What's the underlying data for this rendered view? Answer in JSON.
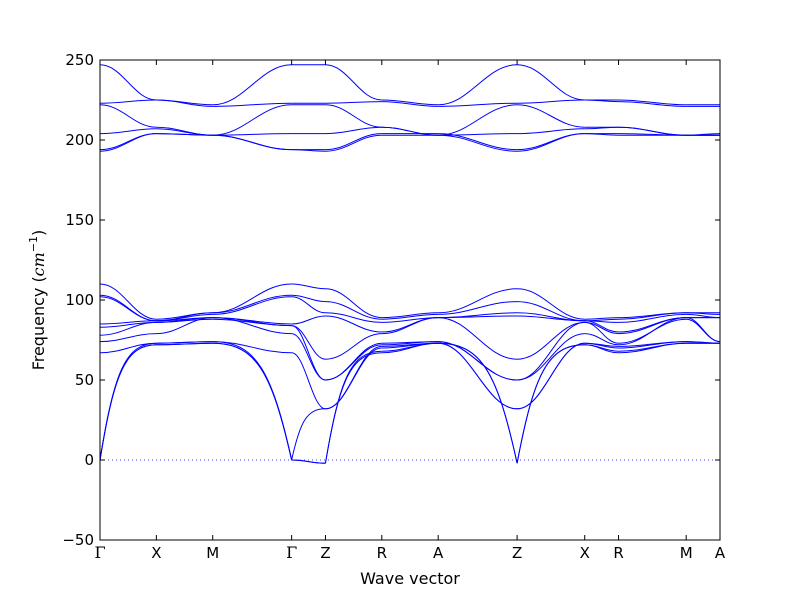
{
  "chart_data": {
    "type": "line",
    "xlabel": "Wave vector",
    "ylabel_text": "Frequency (",
    "ylabel_unit": "cm",
    "ylabel_exp": "−1",
    "ylabel_close": ")",
    "ylim": [
      -50,
      250
    ],
    "y_ticks": [
      -50,
      0,
      50,
      100,
      150,
      200,
      250
    ],
    "y_tick_labels": [
      "−50",
      "0",
      "50",
      "100",
      "150",
      "200",
      "250"
    ],
    "zero_line": {
      "value": 0,
      "style": "dotted",
      "color": "#0000ff"
    },
    "series_color": "#0000ff",
    "path": [
      {
        "label": "Γ",
        "k": 0.0
      },
      {
        "label": "X",
        "k": 0.5
      },
      {
        "label": "M",
        "k": 1.0
      },
      {
        "label": "Γ",
        "k": 1.7
      },
      {
        "label": "Z",
        "k": 2.0
      },
      {
        "label": "R",
        "k": 2.5
      },
      {
        "label": "A",
        "k": 3.0
      },
      {
        "label": "Z",
        "k": 3.7
      },
      {
        "label": "X",
        "k": 4.3
      },
      {
        "label": "R",
        "k": 4.6
      },
      {
        "label": "M",
        "k": 5.2
      },
      {
        "label": "A",
        "k": 5.5
      }
    ],
    "segments": [
      {
        "from": "Γ",
        "to": "X",
        "bands": [
          [
            0,
            72
          ],
          [
            0,
            72
          ],
          [
            0,
            73
          ],
          [
            67,
            73
          ],
          [
            74,
            79
          ],
          [
            78,
            86
          ],
          [
            83,
            86
          ],
          [
            85,
            87
          ],
          [
            102,
            87
          ],
          [
            103,
            87
          ],
          [
            110,
            88
          ],
          [
            193,
            204
          ],
          [
            194,
            204
          ],
          [
            204,
            207
          ],
          [
            222,
            208
          ],
          [
            223,
            225
          ],
          [
            247,
            225
          ]
        ]
      },
      {
        "from": "X",
        "to": "M",
        "bands": [
          [
            72,
            73
          ],
          [
            72,
            73
          ],
          [
            73,
            74
          ],
          [
            73,
            74
          ],
          [
            79,
            89
          ],
          [
            86,
            88
          ],
          [
            86,
            89
          ],
          [
            87,
            89
          ],
          [
            87,
            91
          ],
          [
            87,
            92
          ],
          [
            88,
            92
          ],
          [
            204,
            203
          ],
          [
            204,
            203
          ],
          [
            207,
            203
          ],
          [
            208,
            203
          ],
          [
            225,
            221
          ],
          [
            225,
            222
          ]
        ]
      },
      {
        "from": "M",
        "to": "Γ",
        "bands": [
          [
            73,
            0
          ],
          [
            73,
            0
          ],
          [
            74,
            0
          ],
          [
            74,
            67
          ],
          [
            89,
            79
          ],
          [
            88,
            84
          ],
          [
            89,
            84
          ],
          [
            89,
            85
          ],
          [
            91,
            102
          ],
          [
            92,
            103
          ],
          [
            92,
            110
          ],
          [
            203,
            194
          ],
          [
            203,
            194
          ],
          [
            203,
            204
          ],
          [
            203,
            222
          ],
          [
            221,
            223
          ],
          [
            222,
            247
          ]
        ]
      },
      {
        "from": "Γ",
        "to": "Z",
        "bands": [
          [
            0,
            -2
          ],
          [
            0,
            -2
          ],
          [
            0,
            32
          ],
          [
            67,
            32
          ],
          [
            79,
            50
          ],
          [
            84,
            50
          ],
          [
            84,
            63
          ],
          [
            85,
            90
          ],
          [
            102,
            92
          ],
          [
            103,
            99
          ],
          [
            110,
            107
          ],
          [
            194,
            193
          ],
          [
            194,
            194
          ],
          [
            204,
            204
          ],
          [
            222,
            222
          ],
          [
            223,
            223
          ],
          [
            247,
            247
          ]
        ]
      },
      {
        "from": "Z",
        "to": "R",
        "bands": [
          [
            -2,
            67
          ],
          [
            -2,
            68
          ],
          [
            32,
            70
          ],
          [
            32,
            71
          ],
          [
            50,
            72
          ],
          [
            50,
            73
          ],
          [
            63,
            79
          ],
          [
            90,
            80
          ],
          [
            92,
            86
          ],
          [
            99,
            88
          ],
          [
            107,
            89
          ],
          [
            193,
            203
          ],
          [
            194,
            204
          ],
          [
            204,
            208
          ],
          [
            222,
            208
          ],
          [
            223,
            224
          ],
          [
            247,
            225
          ]
        ]
      },
      {
        "from": "R",
        "to": "A",
        "bands": [
          [
            67,
            73
          ],
          [
            68,
            73
          ],
          [
            70,
            73
          ],
          [
            71,
            73
          ],
          [
            72,
            74
          ],
          [
            73,
            74
          ],
          [
            79,
            89
          ],
          [
            80,
            89
          ],
          [
            86,
            89
          ],
          [
            88,
            91
          ],
          [
            89,
            92
          ],
          [
            203,
            203
          ],
          [
            204,
            204
          ],
          [
            208,
            203
          ],
          [
            208,
            203
          ],
          [
            224,
            221
          ],
          [
            225,
            222
          ]
        ]
      },
      {
        "from": "A",
        "to": "Z",
        "bands": [
          [
            73,
            -2
          ],
          [
            73,
            -2
          ],
          [
            73,
            32
          ],
          [
            73,
            32
          ],
          [
            74,
            50
          ],
          [
            74,
            50
          ],
          [
            89,
            63
          ],
          [
            89,
            90
          ],
          [
            89,
            92
          ],
          [
            91,
            99
          ],
          [
            92,
            107
          ],
          [
            203,
            193
          ],
          [
            204,
            194
          ],
          [
            203,
            204
          ],
          [
            203,
            222
          ],
          [
            221,
            223
          ],
          [
            222,
            247
          ]
        ]
      },
      {
        "from": "Z",
        "to": "X",
        "bands": [
          [
            -2,
            72
          ],
          [
            -2,
            72
          ],
          [
            32,
            73
          ],
          [
            32,
            73
          ],
          [
            50,
            79
          ],
          [
            50,
            86
          ],
          [
            63,
            86
          ],
          [
            90,
            87
          ],
          [
            92,
            87
          ],
          [
            99,
            87
          ],
          [
            107,
            88
          ],
          [
            193,
            204
          ],
          [
            194,
            204
          ],
          [
            204,
            207
          ],
          [
            222,
            208
          ],
          [
            223,
            225
          ],
          [
            247,
            225
          ]
        ]
      },
      {
        "from": "X",
        "to": "R",
        "bands": [
          [
            72,
            67
          ],
          [
            72,
            68
          ],
          [
            73,
            70
          ],
          [
            73,
            71
          ],
          [
            79,
            72
          ],
          [
            86,
            73
          ],
          [
            86,
            79
          ],
          [
            87,
            80
          ],
          [
            87,
            86
          ],
          [
            87,
            88
          ],
          [
            88,
            89
          ],
          [
            204,
            203
          ],
          [
            204,
            204
          ],
          [
            207,
            208
          ],
          [
            208,
            208
          ],
          [
            225,
            224
          ],
          [
            225,
            225
          ]
        ]
      },
      {
        "from": "R",
        "to": "M",
        "bands": [
          [
            67,
            73
          ],
          [
            68,
            73
          ],
          [
            70,
            74
          ],
          [
            71,
            74
          ],
          [
            72,
            89
          ],
          [
            73,
            88
          ],
          [
            79,
            89
          ],
          [
            80,
            89
          ],
          [
            86,
            91
          ],
          [
            88,
            92
          ],
          [
            89,
            92
          ],
          [
            203,
            203
          ],
          [
            204,
            203
          ],
          [
            208,
            203
          ],
          [
            208,
            203
          ],
          [
            224,
            221
          ],
          [
            225,
            222
          ]
        ]
      },
      {
        "from": "M",
        "to": "A",
        "bands": [
          [
            73,
            73
          ],
          [
            73,
            73
          ],
          [
            74,
            73
          ],
          [
            74,
            73
          ],
          [
            89,
            74
          ],
          [
            88,
            74
          ],
          [
            89,
            89
          ],
          [
            89,
            89
          ],
          [
            91,
            89
          ],
          [
            92,
            91
          ],
          [
            92,
            92
          ],
          [
            203,
            203
          ],
          [
            203,
            204
          ],
          [
            203,
            203
          ],
          [
            203,
            203
          ],
          [
            221,
            221
          ],
          [
            222,
            222
          ]
        ]
      }
    ]
  }
}
